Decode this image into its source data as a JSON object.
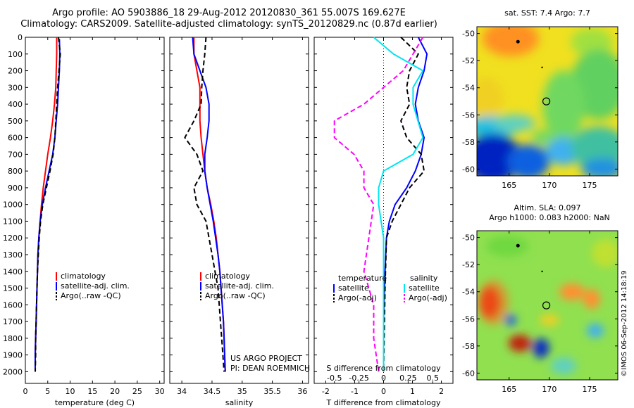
{
  "header": {
    "line1": "Argo profile: AO 5903886_18 29-Aug-2012 20120830_361 55.007S 169.627E",
    "line2": "Climatology: CARS2009. Satellite-adjusted climatology: synTS_20120829.nc (0.87d earlier)"
  },
  "colors": {
    "climatology": "#ff0000",
    "satellite": "#0000ff",
    "argo": "#000000",
    "sal_sat": "#00e5ee",
    "sal_argo": "#ff00ff"
  },
  "chart_data": [
    {
      "type": "line",
      "id": "temperature",
      "xlabel": "temperature (deg C)",
      "ylabel": "",
      "xlim": [
        0,
        31
      ],
      "ylim": [
        0,
        2070
      ],
      "y_reversed": true,
      "xticks": [
        0,
        5,
        10,
        15,
        20,
        25,
        30
      ],
      "yticks": [
        0,
        100,
        200,
        300,
        400,
        500,
        600,
        700,
        800,
        900,
        1000,
        1100,
        1200,
        1300,
        1400,
        1500,
        1600,
        1700,
        1800,
        1900,
        2000
      ],
      "legend": [
        "climatology",
        "satellite-adj. clim.",
        "Argo(..raw -QC)"
      ],
      "legend_position": "lower-center",
      "series": [
        {
          "name": "climatology",
          "style": "solid",
          "color": "#ff0000",
          "points": [
            [
              7.0,
              0
            ],
            [
              7.0,
              100
            ],
            [
              6.9,
              200
            ],
            [
              6.8,
              300
            ],
            [
              6.5,
              400
            ],
            [
              6.1,
              500
            ],
            [
              5.6,
              600
            ],
            [
              5.0,
              700
            ],
            [
              4.5,
              800
            ],
            [
              4.0,
              900
            ],
            [
              3.6,
              1000
            ],
            [
              3.3,
              1100
            ],
            [
              3.0,
              1200
            ],
            [
              2.8,
              1300
            ],
            [
              2.7,
              1400
            ],
            [
              2.6,
              1500
            ],
            [
              2.5,
              1600
            ],
            [
              2.4,
              1700
            ],
            [
              2.3,
              1800
            ],
            [
              2.2,
              1900
            ],
            [
              2.2,
              2000
            ]
          ]
        },
        {
          "name": "satellite-adj. clim.",
          "style": "solid",
          "color": "#0000ff",
          "points": [
            [
              7.6,
              10
            ],
            [
              7.7,
              100
            ],
            [
              7.6,
              200
            ],
            [
              7.4,
              300
            ],
            [
              7.2,
              400
            ],
            [
              6.9,
              500
            ],
            [
              6.6,
              600
            ],
            [
              6.1,
              700
            ],
            [
              5.3,
              800
            ],
            [
              4.5,
              900
            ],
            [
              3.8,
              1000
            ],
            [
              3.3,
              1100
            ],
            [
              3.0,
              1200
            ],
            [
              2.8,
              1300
            ],
            [
              2.7,
              1400
            ],
            [
              2.6,
              1500
            ],
            [
              2.5,
              1600
            ],
            [
              2.4,
              1700
            ],
            [
              2.3,
              1800
            ],
            [
              2.2,
              1900
            ],
            [
              2.2,
              2000
            ]
          ]
        },
        {
          "name": "Argo(..raw -QC)",
          "style": "dashed",
          "color": "#000000",
          "points": [
            [
              7.4,
              0
            ],
            [
              7.8,
              100
            ],
            [
              7.5,
              200
            ],
            [
              7.2,
              300
            ],
            [
              7.0,
              400
            ],
            [
              6.8,
              500
            ],
            [
              6.6,
              600
            ],
            [
              6.2,
              700
            ],
            [
              5.5,
              800
            ],
            [
              4.7,
              900
            ],
            [
              3.9,
              1000
            ],
            [
              3.4,
              1100
            ],
            [
              3.1,
              1200
            ],
            [
              2.9,
              1300
            ],
            [
              2.7,
              1400
            ],
            [
              2.6,
              1500
            ],
            [
              2.5,
              1600
            ],
            [
              2.4,
              1700
            ],
            [
              2.3,
              1800
            ],
            [
              2.3,
              1900
            ],
            [
              2.2,
              2000
            ]
          ]
        }
      ]
    },
    {
      "type": "line",
      "id": "salinity",
      "xlabel": "salinity",
      "ylabel": "",
      "xlim": [
        33.8,
        36.1
      ],
      "ylim": [
        0,
        2070
      ],
      "y_reversed": true,
      "xticks": [
        34,
        34.5,
        35,
        35.5,
        36
      ],
      "legend": [
        "climatology",
        "satellite-adj. clim.",
        "Argo(..raw -QC)"
      ],
      "legend_position": "lower-center",
      "annotations": [
        "US ARGO PROJECT",
        "PI: DEAN ROEMMICH"
      ],
      "series": [
        {
          "name": "climatology",
          "style": "solid",
          "color": "#ff0000",
          "points": [
            [
              34.2,
              0
            ],
            [
              34.2,
              100
            ],
            [
              34.25,
              200
            ],
            [
              34.3,
              300
            ],
            [
              34.3,
              400
            ],
            [
              34.3,
              500
            ],
            [
              34.32,
              600
            ],
            [
              34.35,
              700
            ],
            [
              34.38,
              800
            ],
            [
              34.42,
              900
            ],
            [
              34.48,
              1000
            ],
            [
              34.53,
              1100
            ],
            [
              34.57,
              1200
            ],
            [
              34.6,
              1300
            ],
            [
              34.63,
              1400
            ],
            [
              34.65,
              1500
            ],
            [
              34.67,
              1600
            ],
            [
              34.69,
              1700
            ],
            [
              34.7,
              1800
            ],
            [
              34.71,
              1900
            ],
            [
              34.72,
              2000
            ]
          ]
        },
        {
          "name": "satellite-adj. clim.",
          "style": "solid",
          "color": "#0000ff",
          "points": [
            [
              34.18,
              0
            ],
            [
              34.2,
              100
            ],
            [
              34.3,
              200
            ],
            [
              34.4,
              300
            ],
            [
              34.45,
              400
            ],
            [
              34.45,
              500
            ],
            [
              34.42,
              600
            ],
            [
              34.38,
              700
            ],
            [
              34.38,
              800
            ],
            [
              34.42,
              900
            ],
            [
              34.47,
              1000
            ],
            [
              34.52,
              1100
            ],
            [
              34.56,
              1200
            ],
            [
              34.6,
              1300
            ],
            [
              34.63,
              1400
            ],
            [
              34.65,
              1500
            ],
            [
              34.67,
              1600
            ],
            [
              34.69,
              1700
            ],
            [
              34.7,
              1800
            ],
            [
              34.71,
              1900
            ],
            [
              34.72,
              2000
            ]
          ]
        },
        {
          "name": "Argo(..raw -QC)",
          "style": "dashed",
          "color": "#000000",
          "points": [
            [
              34.4,
              0
            ],
            [
              34.38,
              100
            ],
            [
              34.35,
              200
            ],
            [
              34.33,
              300
            ],
            [
              34.32,
              400
            ],
            [
              34.2,
              500
            ],
            [
              34.05,
              600
            ],
            [
              34.25,
              700
            ],
            [
              34.35,
              800
            ],
            [
              34.2,
              900
            ],
            [
              34.25,
              1000
            ],
            [
              34.4,
              1100
            ],
            [
              34.45,
              1200
            ],
            [
              34.5,
              1300
            ],
            [
              34.55,
              1400
            ],
            [
              34.6,
              1500
            ],
            [
              34.62,
              1600
            ],
            [
              34.64,
              1700
            ],
            [
              34.66,
              1800
            ],
            [
              34.68,
              1900
            ],
            [
              34.7,
              2000
            ]
          ]
        }
      ]
    },
    {
      "type": "line",
      "id": "difference",
      "xlabel": "T difference from climatology",
      "xlabel_top": "S difference from climatology",
      "xlim": [
        -2.4,
        2.4
      ],
      "ylim": [
        0,
        2070
      ],
      "y_reversed": true,
      "xticks": [
        -2,
        -1,
        0,
        1,
        2
      ],
      "xtick_labels": [
        "-2",
        "-1",
        "0",
        "1",
        "2"
      ],
      "xticks_top": [
        -0.5,
        -0.25,
        0,
        0.25,
        0.5
      ],
      "legend_temperature": {
        "heading": "temperature",
        "items": [
          "satellite",
          "Argo(-adj)"
        ]
      },
      "legend_salinity": {
        "heading": "salinity",
        "items": [
          "satellite",
          "Argo(-adj)"
        ]
      },
      "series": [
        {
          "name": "satellite",
          "group": "temperature",
          "style": "solid",
          "color": "#0000ff",
          "points": [
            [
              1.2,
              0
            ],
            [
              1.5,
              100
            ],
            [
              1.4,
              200
            ],
            [
              1.2,
              300
            ],
            [
              1.1,
              400
            ],
            [
              1.2,
              500
            ],
            [
              1.4,
              600
            ],
            [
              1.3,
              700
            ],
            [
              1.1,
              800
            ],
            [
              0.8,
              900
            ],
            [
              0.4,
              1000
            ],
            [
              0.2,
              1100
            ],
            [
              0.1,
              1200
            ],
            [
              0.05,
              1400
            ],
            [
              0.0,
              1700
            ],
            [
              0.0,
              2000
            ]
          ]
        },
        {
          "name": "Argo(-adj)",
          "group": "temperature",
          "style": "dashed",
          "color": "#000000",
          "points": [
            [
              0.6,
              0
            ],
            [
              1.2,
              100
            ],
            [
              0.9,
              200
            ],
            [
              0.8,
              300
            ],
            [
              0.9,
              400
            ],
            [
              0.6,
              500
            ],
            [
              0.8,
              600
            ],
            [
              1.3,
              700
            ],
            [
              1.4,
              800
            ],
            [
              0.9,
              900
            ],
            [
              0.6,
              1000
            ],
            [
              0.3,
              1100
            ],
            [
              0.1,
              1200
            ],
            [
              0.05,
              1500
            ],
            [
              0.0,
              2000
            ]
          ]
        },
        {
          "name": "satellite",
          "group": "salinity",
          "style": "solid",
          "color": "#00e5ee",
          "points": [
            [
              -0.1,
              0
            ],
            [
              0.1,
              100
            ],
            [
              0.4,
              200
            ],
            [
              0.3,
              300
            ],
            [
              0.3,
              400
            ],
            [
              0.35,
              500
            ],
            [
              0.4,
              600
            ],
            [
              0.3,
              700
            ],
            [
              0.0,
              800
            ],
            [
              -0.05,
              900
            ],
            [
              -0.05,
              1000
            ],
            [
              0.0,
              1200
            ],
            [
              0.0,
              1500
            ],
            [
              0.0,
              2000
            ]
          ]
        },
        {
          "name": "Argo(-adj)",
          "group": "salinity",
          "style": "dashed",
          "color": "#ff00ff",
          "points": [
            [
              0.4,
              0
            ],
            [
              0.3,
              100
            ],
            [
              0.2,
              200
            ],
            [
              0.0,
              300
            ],
            [
              -0.2,
              400
            ],
            [
              -0.5,
              500
            ],
            [
              -0.5,
              600
            ],
            [
              -0.3,
              700
            ],
            [
              -0.2,
              800
            ],
            [
              -0.2,
              900
            ],
            [
              -0.1,
              1000
            ],
            [
              -0.15,
              1200
            ],
            [
              -0.2,
              1400
            ],
            [
              -0.1,
              1600
            ],
            [
              -0.1,
              1800
            ],
            [
              -0.05,
              2000
            ]
          ]
        }
      ]
    }
  ],
  "maps": [
    {
      "title": "sat. SST: 7.4  Argo: 7.7",
      "xticks": [
        165,
        170,
        175
      ],
      "yticks": [
        -50,
        -52,
        -54,
        -56,
        -58,
        -60
      ],
      "xlim": [
        161,
        178.5
      ],
      "ylim": [
        -60.5,
        -49.5
      ],
      "marker": {
        "lon": 169.627,
        "lat": -55.007
      }
    },
    {
      "title1": "Altim. SLA: 0.097",
      "title2": "Argo h1000: 0.083 h2000: NaN",
      "xticks": [
        165,
        170,
        175
      ],
      "yticks": [
        -50,
        -52,
        -54,
        -56,
        -58,
        -60
      ],
      "xlim": [
        161,
        178.5
      ],
      "ylim": [
        -60.5,
        -49.5
      ],
      "marker": {
        "lon": 169.627,
        "lat": -55.007
      }
    }
  ],
  "credit": "©IMOS 06-Sep-2012 14:18:19"
}
